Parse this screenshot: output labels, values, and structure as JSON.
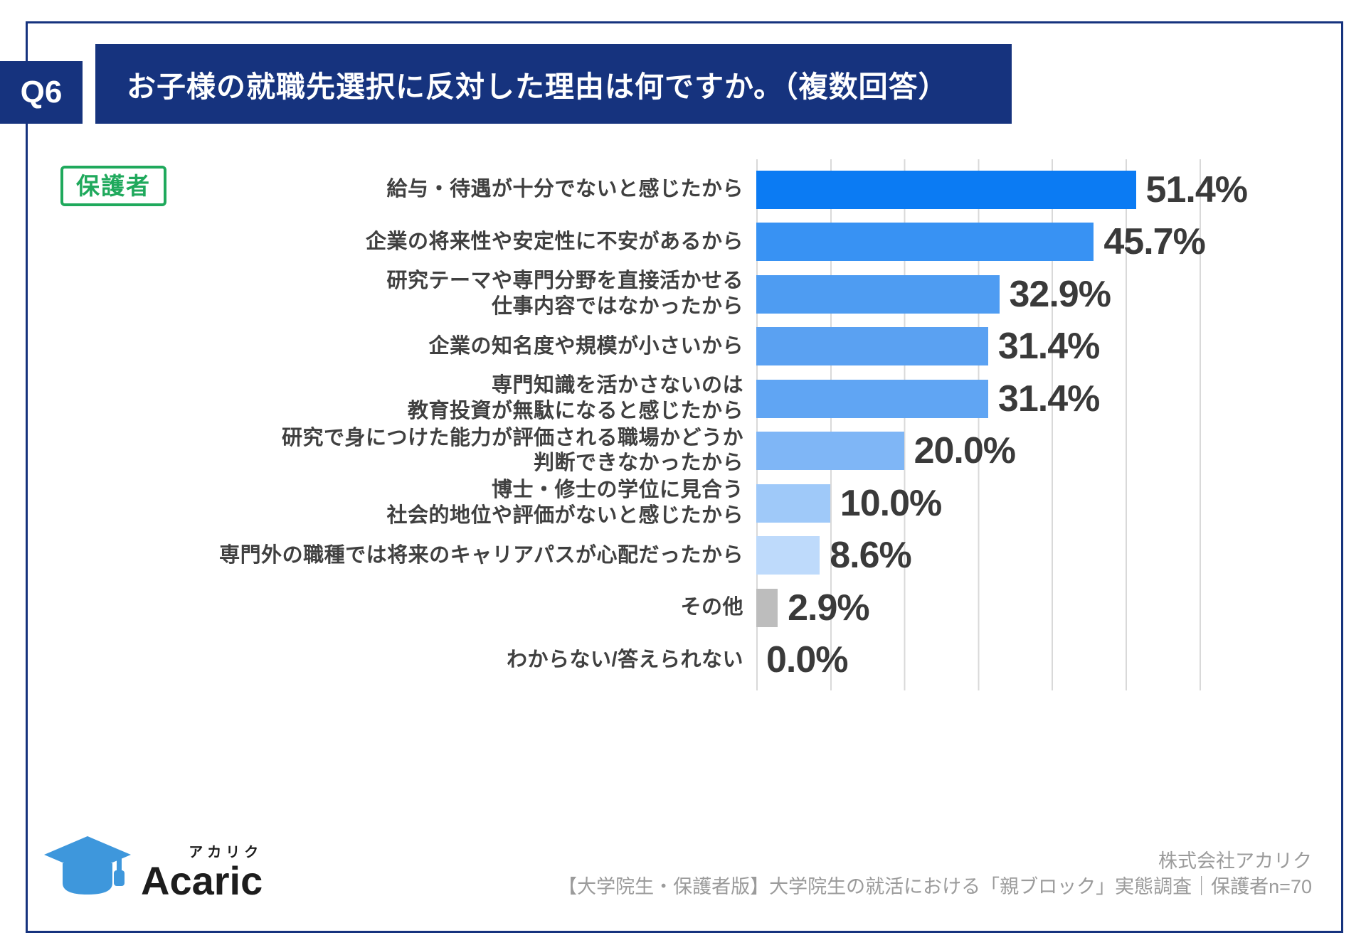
{
  "header": {
    "question_no": "Q6",
    "title": "お子様の就職先選択に反対した理由は何ですか。（複数回答）"
  },
  "badge": {
    "label": "保護者"
  },
  "chart_data": {
    "type": "bar",
    "orientation": "horizontal",
    "unit": "%",
    "categories": [
      "給与・待遇が十分でないと感じたから",
      "企業の将来性や安定性に不安があるから",
      "研究テーマや専門分野を直接活かせる\n仕事内容ではなかったから",
      "企業の知名度や規模が小さいから",
      "専門知識を活かさないのは\n教育投資が無駄になると感じたから",
      "研究で身につけた能力が評価される職場かどうか\n判断できなかったから",
      "博士・修士の学位に見合う\n社会的地位や評価がないと感じたから",
      "専門外の職種では将来のキャリアパスが心配だったから",
      "その他",
      "わからない/答えられない"
    ],
    "values": [
      51.4,
      45.7,
      32.9,
      31.4,
      31.4,
      20.0,
      10.0,
      8.6,
      2.9,
      0.0
    ],
    "value_labels": [
      "51.4%",
      "45.7%",
      "32.9%",
      "31.4%",
      "31.4%",
      "20.0%",
      "10.0%",
      "8.6%",
      "2.9%",
      "0.0%"
    ],
    "bar_colors": [
      "#0b7bf3",
      "#3892f3",
      "#4e9cf2",
      "#5aa1f2",
      "#60a5f3",
      "#7fb6f6",
      "#9fc9f9",
      "#bedafb",
      "#bdbdbd",
      "#bdbdbd"
    ],
    "xlim": [
      0,
      60
    ],
    "gridline_interval": 10,
    "grid": true,
    "legend": "none",
    "title": "お子様の就職先選択に反対した理由は何ですか。（複数回答）",
    "xlabel": "",
    "ylabel": ""
  },
  "footer": {
    "logo": {
      "brand": "Acaric",
      "kana": "アカリク"
    },
    "company": "株式会社アカリク",
    "source": "【大学院生・保護者版】大学院生の就活における「親ブロック」実態調査｜保護者n=70"
  },
  "colors": {
    "navy": "#16337e",
    "badge_green": "#1fa95c",
    "value_text": "#3a3a3a",
    "label_text": "#404040",
    "gridline": "#d9d9d9",
    "footer_text": "#9b9b9b",
    "logo_blue": "#3e97dc"
  }
}
